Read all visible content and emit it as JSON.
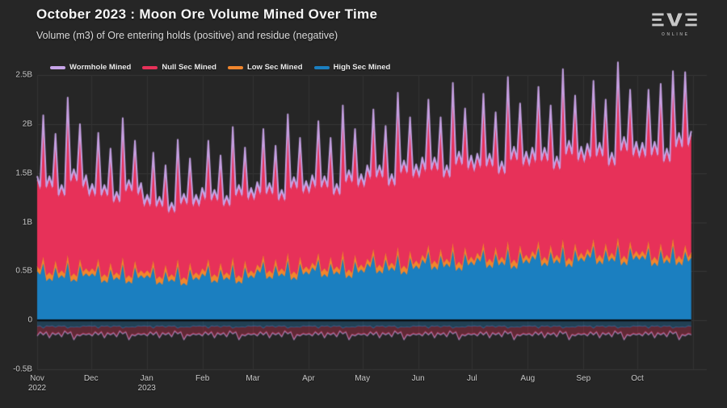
{
  "header": {
    "title": "October 2023 : Moon Ore Volume Mined Over Time",
    "subtitle": "Volume (m3) of Ore entering holds (positive) and residue (negative)"
  },
  "logo": {
    "brand": "EVE",
    "sub": "ONLINE"
  },
  "colors": {
    "background": "#262626",
    "grid_line": "#363636",
    "month_line": "#333333",
    "zero_line": "#0b0b0b",
    "axis_text": "#c9c9c9",
    "wormhole": "#c7a4e8",
    "null_sec": "#e73159",
    "low_sec": "#f0862d",
    "high_sec": "#1b7fc0"
  },
  "chart_data": {
    "type": "area",
    "stacked": true,
    "title": "October 2023 : Moon Ore Volume Mined Over Time",
    "subtitle": "Volume (m3) of Ore entering holds (positive) and residue (negative)",
    "x_range": "Nov 2022 through Oct 2023, daily values (sampled every ~3.4 days)",
    "x_days_total": 365,
    "ylim": [
      -0.5,
      2.5
    ],
    "y_unit": "B m3",
    "grid": true,
    "legend_position": "top-left",
    "legend": [
      {
        "label": "Wormhole Mined",
        "color": "#c7a4e8"
      },
      {
        "label": "Null Sec Mined",
        "color": "#e73159"
      },
      {
        "label": "Low Sec Mined",
        "color": "#f0862d"
      },
      {
        "label": "High Sec Mined",
        "color": "#1b7fc0"
      }
    ],
    "y_ticks": [
      {
        "label": "2.5B",
        "value": 2.5
      },
      {
        "label": "2B",
        "value": 2.0
      },
      {
        "label": "1.5B",
        "value": 1.5
      },
      {
        "label": "1B",
        "value": 1.0
      },
      {
        "label": "0.5B",
        "value": 0.5
      },
      {
        "label": "0",
        "value": 0.0
      },
      {
        "label": "-0.5B",
        "value": -0.5
      }
    ],
    "x_ticks": [
      {
        "label": "Nov",
        "year": "2022",
        "day": 0
      },
      {
        "label": "Dec",
        "day": 30
      },
      {
        "label": "Jan",
        "year": "2023",
        "day": 61
      },
      {
        "label": "Feb",
        "day": 92
      },
      {
        "label": "Mar",
        "day": 120
      },
      {
        "label": "Apr",
        "day": 151
      },
      {
        "label": "May",
        "day": 181
      },
      {
        "label": "Jun",
        "day": 212
      },
      {
        "label": "Jul",
        "day": 242
      },
      {
        "label": "Aug",
        "day": 273
      },
      {
        "label": "Sep",
        "day": 304
      },
      {
        "label": "Oct",
        "day": 334
      }
    ],
    "month_gridline_days": [
      0,
      30,
      61,
      92,
      120,
      151,
      181,
      212,
      242,
      273,
      304,
      334,
      365
    ],
    "series": [
      {
        "name": "High Sec Mined",
        "color": "#1b7fc0",
        "values": [
          0.5,
          0.58,
          0.43,
          0.54,
          0.46,
          0.59,
          0.42,
          0.56,
          0.48,
          0.48,
          0.56,
          0.41,
          0.52,
          0.44,
          0.57,
          0.4,
          0.54,
          0.46,
          0.46,
          0.54,
          0.39,
          0.5,
          0.42,
          0.55,
          0.38,
          0.52,
          0.44,
          0.48,
          0.56,
          0.41,
          0.52,
          0.44,
          0.57,
          0.4,
          0.54,
          0.46,
          0.52,
          0.6,
          0.45,
          0.56,
          0.48,
          0.61,
          0.44,
          0.58,
          0.5,
          0.54,
          0.62,
          0.47,
          0.58,
          0.5,
          0.63,
          0.46,
          0.6,
          0.52,
          0.58,
          0.66,
          0.51,
          0.62,
          0.54,
          0.67,
          0.5,
          0.64,
          0.56,
          0.62,
          0.7,
          0.55,
          0.66,
          0.58,
          0.71,
          0.54,
          0.68,
          0.6,
          0.64,
          0.72,
          0.57,
          0.68,
          0.6,
          0.73,
          0.56,
          0.7,
          0.62,
          0.66,
          0.74,
          0.59,
          0.7,
          0.62,
          0.75,
          0.58,
          0.72,
          0.64,
          0.68,
          0.76,
          0.61,
          0.72,
          0.64,
          0.77,
          0.6,
          0.74,
          0.66,
          0.66,
          0.74,
          0.59,
          0.72,
          0.62,
          0.76,
          0.6,
          0.7,
          0.64
        ]
      },
      {
        "name": "Low Sec Mined",
        "color": "#f0862d",
        "values": [
          0.05,
          0.07,
          0.06,
          0.07,
          0.05,
          0.08,
          0.06,
          0.07,
          0.05,
          0.05,
          0.07,
          0.06,
          0.07,
          0.05,
          0.08,
          0.06,
          0.07,
          0.05,
          0.05,
          0.07,
          0.06,
          0.07,
          0.05,
          0.08,
          0.06,
          0.07,
          0.05,
          0.05,
          0.07,
          0.06,
          0.07,
          0.05,
          0.08,
          0.06,
          0.07,
          0.05,
          0.05,
          0.07,
          0.06,
          0.07,
          0.05,
          0.08,
          0.06,
          0.07,
          0.05,
          0.05,
          0.07,
          0.06,
          0.07,
          0.05,
          0.08,
          0.06,
          0.07,
          0.05,
          0.05,
          0.07,
          0.06,
          0.07,
          0.05,
          0.08,
          0.06,
          0.07,
          0.05,
          0.05,
          0.07,
          0.06,
          0.07,
          0.05,
          0.08,
          0.06,
          0.07,
          0.05,
          0.05,
          0.07,
          0.06,
          0.07,
          0.05,
          0.08,
          0.06,
          0.07,
          0.05,
          0.05,
          0.07,
          0.06,
          0.07,
          0.05,
          0.08,
          0.06,
          0.07,
          0.05,
          0.05,
          0.07,
          0.06,
          0.07,
          0.05,
          0.08,
          0.06,
          0.07,
          0.05,
          0.05,
          0.07,
          0.06,
          0.07,
          0.05,
          0.08,
          0.06,
          0.07,
          0.05
        ]
      },
      {
        "name": "Null Sec Mined",
        "color": "#e73159",
        "values": [
          0.88,
          1.4,
          0.95,
          1.25,
          0.84,
          1.55,
          1.03,
          1.33,
          0.91,
          0.82,
          1.24,
          0.88,
          1.12,
          0.79,
          1.36,
          0.94,
          1.18,
          0.85,
          0.73,
          1.06,
          0.78,
          0.97,
          0.7,
          1.16,
          0.82,
          1.02,
          0.75,
          0.78,
          1.16,
          0.83,
          1.05,
          0.75,
          1.27,
          0.89,
          1.11,
          0.8,
          0.8,
          1.24,
          0.86,
          1.11,
          0.77,
          1.36,
          0.93,
          1.17,
          0.83,
          0.85,
          1.3,
          0.91,
          1.17,
          0.81,
          1.43,
          0.98,
          1.24,
          0.88,
          0.91,
          1.38,
          0.98,
          1.25,
          0.87,
          1.52,
          1.04,
          1.32,
          0.94,
          0.95,
          1.44,
          1.02,
          1.3,
          0.92,
          1.58,
          1.09,
          1.37,
          0.99,
          0.97,
          1.48,
          1.04,
          1.33,
          0.94,
          1.62,
          1.12,
          1.4,
          1.01,
          1.01,
          1.53,
          1.08,
          1.38,
          0.97,
          1.68,
          1.16,
          1.46,
          1.04,
          1.03,
          1.57,
          1.11,
          1.42,
          0.99,
          1.73,
          1.18,
          1.5,
          1.07,
          1.06,
          1.5,
          1.14,
          1.58,
          1.05,
          1.65,
          1.22,
          1.72,
          1.2
        ]
      },
      {
        "name": "Wormhole Mined",
        "color": "#c7a4e8",
        "values": [
          0.04,
          0.04,
          0.03,
          0.04,
          0.03,
          0.05,
          0.03,
          0.04,
          0.04,
          0.04,
          0.04,
          0.03,
          0.04,
          0.03,
          0.05,
          0.03,
          0.04,
          0.04,
          0.04,
          0.04,
          0.03,
          0.04,
          0.03,
          0.05,
          0.03,
          0.04,
          0.04,
          0.04,
          0.04,
          0.03,
          0.04,
          0.03,
          0.05,
          0.03,
          0.04,
          0.04,
          0.04,
          0.04,
          0.03,
          0.04,
          0.03,
          0.05,
          0.03,
          0.04,
          0.04,
          0.04,
          0.04,
          0.03,
          0.04,
          0.03,
          0.05,
          0.03,
          0.04,
          0.04,
          0.04,
          0.04,
          0.03,
          0.04,
          0.03,
          0.05,
          0.03,
          0.04,
          0.04,
          0.04,
          0.04,
          0.03,
          0.04,
          0.03,
          0.05,
          0.03,
          0.04,
          0.04,
          0.04,
          0.04,
          0.03,
          0.04,
          0.03,
          0.05,
          0.03,
          0.04,
          0.04,
          0.04,
          0.04,
          0.03,
          0.04,
          0.03,
          0.05,
          0.03,
          0.04,
          0.04,
          0.04,
          0.04,
          0.03,
          0.04,
          0.03,
          0.05,
          0.03,
          0.04,
          0.04,
          0.04,
          0.04,
          0.03,
          0.04,
          0.03,
          0.05,
          0.03,
          0.04,
          0.04
        ]
      }
    ],
    "residue_series": [
      {
        "name": "High Sec Residue",
        "color": "#1b7fc0",
        "fill_alpha": 0.3,
        "values": [
          -0.06,
          -0.08,
          -0.06,
          -0.07,
          -0.06,
          -0.08,
          -0.07,
          -0.07,
          -0.06,
          -0.06,
          -0.08,
          -0.06,
          -0.07,
          -0.06,
          -0.08,
          -0.07,
          -0.07,
          -0.06,
          -0.06,
          -0.08,
          -0.06,
          -0.07,
          -0.06,
          -0.08,
          -0.07,
          -0.07,
          -0.06,
          -0.06,
          -0.08,
          -0.06,
          -0.07,
          -0.06,
          -0.08,
          -0.07,
          -0.07,
          -0.06,
          -0.06,
          -0.08,
          -0.06,
          -0.07,
          -0.06,
          -0.08,
          -0.07,
          -0.07,
          -0.06,
          -0.06,
          -0.08,
          -0.06,
          -0.07,
          -0.06,
          -0.08,
          -0.07,
          -0.07,
          -0.06,
          -0.06,
          -0.08,
          -0.06,
          -0.07,
          -0.06,
          -0.08,
          -0.07,
          -0.07,
          -0.06,
          -0.06,
          -0.08,
          -0.06,
          -0.07,
          -0.06,
          -0.08,
          -0.07,
          -0.07,
          -0.06,
          -0.06,
          -0.08,
          -0.06,
          -0.07,
          -0.06,
          -0.08,
          -0.07,
          -0.07,
          -0.06,
          -0.06,
          -0.08,
          -0.06,
          -0.07,
          -0.06,
          -0.08,
          -0.07,
          -0.07,
          -0.06,
          -0.06,
          -0.08,
          -0.06,
          -0.07,
          -0.06,
          -0.08,
          -0.07,
          -0.07,
          -0.06,
          -0.06,
          -0.08,
          -0.06,
          -0.07,
          -0.06,
          -0.08,
          -0.07,
          -0.07,
          -0.06
        ]
      },
      {
        "name": "Null Sec Residue",
        "color": "#e73159",
        "fill_alpha": 0.3,
        "values": [
          -0.09,
          -0.06,
          -0.11,
          -0.07,
          -0.1,
          -0.05,
          -0.12,
          -0.08,
          -0.08,
          -0.09,
          -0.06,
          -0.11,
          -0.07,
          -0.1,
          -0.05,
          -0.12,
          -0.08,
          -0.08,
          -0.09,
          -0.06,
          -0.11,
          -0.07,
          -0.1,
          -0.05,
          -0.12,
          -0.08,
          -0.08,
          -0.09,
          -0.06,
          -0.11,
          -0.07,
          -0.1,
          -0.05,
          -0.12,
          -0.08,
          -0.08,
          -0.09,
          -0.06,
          -0.11,
          -0.07,
          -0.1,
          -0.05,
          -0.12,
          -0.08,
          -0.08,
          -0.09,
          -0.06,
          -0.11,
          -0.07,
          -0.1,
          -0.05,
          -0.12,
          -0.08,
          -0.08,
          -0.09,
          -0.06,
          -0.11,
          -0.07,
          -0.1,
          -0.05,
          -0.12,
          -0.08,
          -0.08,
          -0.09,
          -0.06,
          -0.11,
          -0.07,
          -0.1,
          -0.05,
          -0.12,
          -0.08,
          -0.08,
          -0.09,
          -0.06,
          -0.11,
          -0.07,
          -0.1,
          -0.05,
          -0.12,
          -0.08,
          -0.08,
          -0.09,
          -0.06,
          -0.11,
          -0.07,
          -0.1,
          -0.05,
          -0.12,
          -0.08,
          -0.08,
          -0.09,
          -0.06,
          -0.11,
          -0.07,
          -0.1,
          -0.05,
          -0.12,
          -0.08,
          -0.08,
          -0.09,
          -0.06,
          -0.11,
          -0.07,
          -0.1,
          -0.05,
          -0.12,
          -0.08,
          -0.08
        ]
      },
      {
        "name": "Wormhole Residue",
        "color": "#c7a4e8",
        "fill_alpha": 0.35,
        "values": [
          -0.01,
          -0.01,
          -0.01,
          -0.01,
          -0.01,
          -0.01,
          -0.01,
          -0.01,
          -0.01,
          -0.01,
          -0.01,
          -0.01,
          -0.01,
          -0.01,
          -0.01,
          -0.01,
          -0.01,
          -0.01,
          -0.01,
          -0.01,
          -0.01,
          -0.01,
          -0.01,
          -0.01,
          -0.01,
          -0.01,
          -0.01,
          -0.01,
          -0.01,
          -0.01,
          -0.01,
          -0.01,
          -0.01,
          -0.01,
          -0.01,
          -0.01,
          -0.01,
          -0.01,
          -0.01,
          -0.01,
          -0.01,
          -0.01,
          -0.01,
          -0.01,
          -0.01,
          -0.01,
          -0.01,
          -0.01,
          -0.01,
          -0.01,
          -0.01,
          -0.01,
          -0.01,
          -0.01,
          -0.01,
          -0.01,
          -0.01,
          -0.01,
          -0.01,
          -0.01,
          -0.01,
          -0.01,
          -0.01,
          -0.01,
          -0.01,
          -0.01,
          -0.01,
          -0.01,
          -0.01,
          -0.01,
          -0.01,
          -0.01,
          -0.01,
          -0.01,
          -0.01,
          -0.01,
          -0.01,
          -0.01,
          -0.01,
          -0.01,
          -0.01,
          -0.01,
          -0.01,
          -0.01,
          -0.01,
          -0.01,
          -0.01,
          -0.01,
          -0.01,
          -0.01,
          -0.01,
          -0.01,
          -0.01,
          -0.01,
          -0.01,
          -0.01,
          -0.01,
          -0.01,
          -0.01,
          -0.01,
          -0.01,
          -0.01,
          -0.01,
          -0.01,
          -0.01,
          -0.01,
          -0.01,
          -0.01
        ]
      }
    ]
  }
}
